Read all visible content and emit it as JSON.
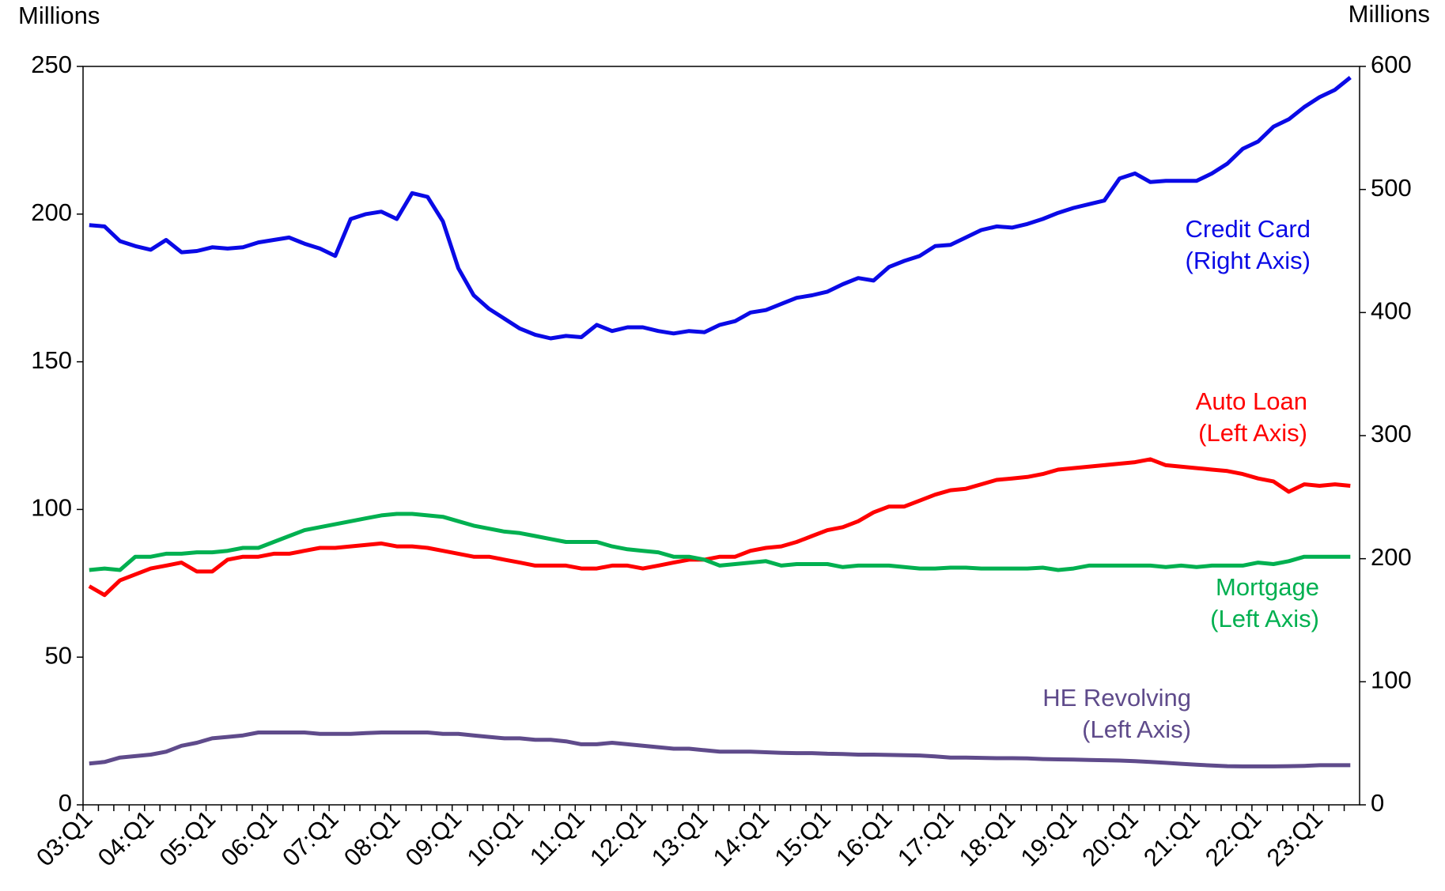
{
  "chart_data": {
    "type": "line",
    "y_axis_label": "Millions",
    "y2_axis_label": "Millions",
    "categories": [
      "03:Q1",
      null,
      null,
      null,
      "04:Q1",
      null,
      null,
      null,
      "05:Q1",
      null,
      null,
      null,
      "06:Q1",
      null,
      null,
      null,
      "07:Q1",
      null,
      null,
      null,
      "08:Q1",
      null,
      null,
      null,
      "09:Q1",
      null,
      null,
      null,
      "10:Q1",
      null,
      null,
      null,
      "11:Q1",
      null,
      null,
      null,
      "12:Q1",
      null,
      null,
      null,
      "13:Q1",
      null,
      null,
      null,
      "14:Q1",
      null,
      null,
      null,
      "15:Q1",
      null,
      null,
      null,
      "16:Q1",
      null,
      null,
      null,
      "17:Q1",
      null,
      null,
      null,
      "18:Q1",
      null,
      null,
      null,
      "19:Q1",
      null,
      null,
      null,
      "20:Q1",
      null,
      null,
      null,
      "21:Q1",
      null,
      null,
      null,
      "22:Q1",
      null,
      null,
      null,
      "23:Q1",
      null,
      null
    ],
    "ylim": [
      0,
      250
    ],
    "yticks": [
      0,
      50,
      100,
      150,
      200,
      250
    ],
    "y2lim": [
      0,
      600
    ],
    "y2ticks": [
      0,
      100,
      200,
      300,
      400,
      500,
      600
    ],
    "series": [
      {
        "name": "Credit Card",
        "axis_label": "(Right Axis)",
        "color": "#0a0ae6",
        "axis": "y2",
        "values": [
          471,
          470,
          458,
          454,
          451,
          459,
          449,
          450,
          453,
          452,
          453,
          457,
          459,
          461,
          456,
          452,
          446,
          476,
          480,
          482,
          476,
          497,
          494,
          474,
          436,
          414,
          403,
          395,
          387,
          382,
          379,
          381,
          380,
          390,
          385,
          388,
          388,
          385,
          383,
          385,
          384,
          390,
          393,
          400,
          402,
          407,
          412,
          414,
          417,
          423,
          428,
          426,
          437,
          442,
          446,
          454,
          455,
          461,
          467,
          470,
          469,
          472,
          476,
          481,
          485,
          488,
          491,
          509,
          513,
          506,
          507,
          507,
          507,
          513,
          521,
          533,
          539,
          551,
          557,
          567,
          575,
          581,
          591
        ]
      },
      {
        "name": "Auto Loan",
        "axis_label": "(Left Axis)",
        "color": "#ff0000",
        "values": [
          74,
          71,
          76,
          78,
          80,
          81,
          82,
          79,
          79,
          83,
          84,
          84,
          85,
          85,
          86,
          87,
          87,
          87.5,
          88,
          88.5,
          87.5,
          87.5,
          87,
          86,
          85,
          84,
          84,
          83,
          82,
          81,
          81,
          81,
          80,
          80,
          81,
          81,
          80,
          81,
          82,
          83,
          83,
          84,
          84,
          86,
          87,
          87.5,
          89,
          91,
          93,
          94,
          96,
          99,
          101,
          101,
          103,
          105,
          106.5,
          107,
          108.5,
          110,
          110.5,
          111,
          112,
          113.5,
          114,
          114.5,
          115,
          115.5,
          116,
          117,
          115,
          114.5,
          114,
          113.5,
          113,
          112,
          110.5,
          109.5,
          106,
          108.5,
          108,
          108.5,
          108
        ]
      },
      {
        "name": "Mortgage",
        "axis_label": "(Left Axis)",
        "color": "#00b050",
        "values": [
          79.5,
          80,
          79.5,
          84,
          84,
          85,
          85,
          85.5,
          85.5,
          86,
          87,
          87,
          89,
          91,
          93,
          94,
          95,
          96,
          97,
          98,
          98.5,
          98.5,
          98,
          97.5,
          96,
          94.5,
          93.5,
          92.5,
          92,
          91,
          90,
          89,
          89,
          89,
          87.5,
          86.5,
          86,
          85.5,
          84,
          84,
          83,
          81,
          81.5,
          82,
          82.5,
          81,
          81.5,
          81.5,
          81.5,
          80.5,
          81,
          81,
          81,
          80.5,
          80,
          80,
          80.3,
          80.3,
          80,
          80,
          80,
          80,
          80.3,
          79.5,
          80,
          81,
          81,
          81,
          81,
          81,
          80.5,
          81,
          80.5,
          81,
          81,
          81,
          82,
          81.5,
          82.5,
          84,
          84,
          84,
          84
        ]
      },
      {
        "name": "HE Revolving",
        "axis_label": "(Left Axis)",
        "color": "#5f4b8b",
        "values": [
          14,
          14.5,
          16,
          16.5,
          17,
          18,
          20,
          21,
          22.5,
          23,
          23.5,
          24.5,
          24.5,
          24.5,
          24.5,
          24,
          24,
          24,
          24.3,
          24.5,
          24.5,
          24.5,
          24.5,
          24,
          24,
          23.5,
          23,
          22.5,
          22.5,
          22,
          22,
          21.5,
          20.5,
          20.5,
          21,
          20.5,
          20,
          19.5,
          19,
          19,
          18.5,
          18,
          18,
          18,
          17.8,
          17.6,
          17.5,
          17.5,
          17.3,
          17.2,
          17,
          17,
          16.9,
          16.8,
          16.7,
          16.4,
          16,
          16,
          15.9,
          15.8,
          15.8,
          15.7,
          15.5,
          15.4,
          15.3,
          15.2,
          15.1,
          15,
          14.8,
          14.5,
          14.2,
          13.9,
          13.6,
          13.3,
          13.1,
          13,
          13,
          13,
          13.1,
          13.2,
          13.4,
          13.4,
          13.4
        ]
      }
    ]
  }
}
